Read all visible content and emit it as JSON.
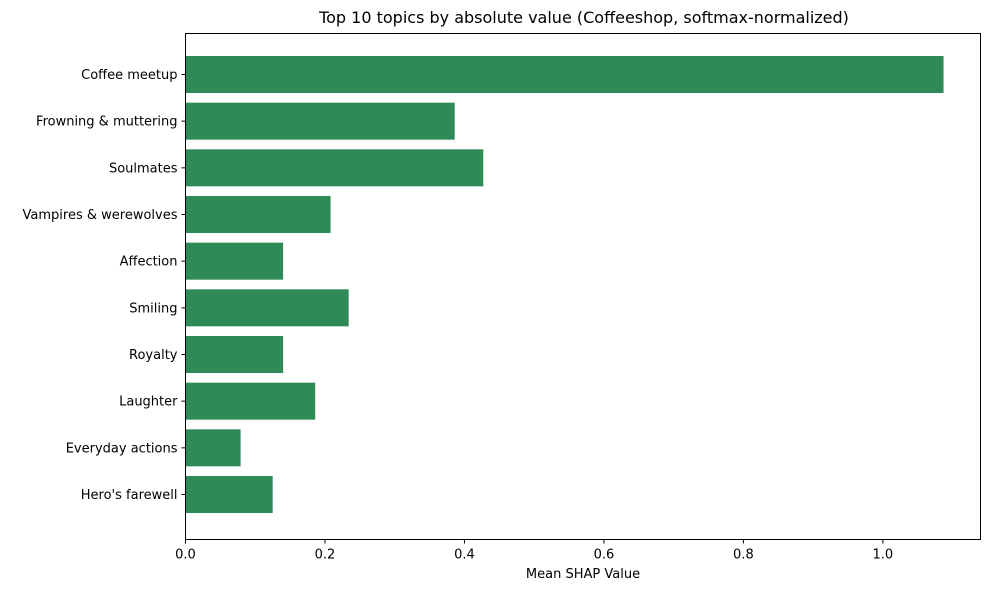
{
  "chart_data": {
    "type": "bar",
    "orientation": "horizontal",
    "title": "Top 10 topics by absolute value (Coffeeshop, softmax-normalized)",
    "xlabel": "Mean SHAP Value",
    "ylabel": "",
    "xlim": [
      0,
      1.14
    ],
    "xticks": [
      0.0,
      0.2,
      0.4,
      0.6,
      0.8,
      1.0
    ],
    "xtick_labels": [
      "0.0",
      "0.2",
      "0.4",
      "0.6",
      "0.8",
      "1.0"
    ],
    "grid": false,
    "bar_color": "#2e8b57",
    "categories": [
      "Coffee meetup",
      "Frowning & muttering",
      "Soulmates",
      "Vampires & werewolves",
      "Affection",
      "Smiling",
      "Royalty",
      "Laughter",
      "Everyday actions",
      "Hero's farewell"
    ],
    "values": [
      1.087,
      0.386,
      0.427,
      0.208,
      0.14,
      0.234,
      0.14,
      0.186,
      0.079,
      0.125
    ]
  }
}
